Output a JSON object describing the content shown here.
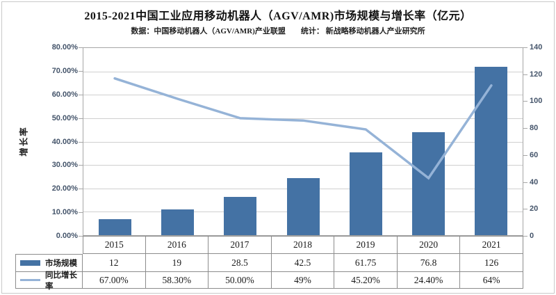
{
  "figure": {
    "title": "2015-2021中国工业应用移动机器人（AGV/AMR)市场规模与增长率（亿元）",
    "subtitle": "数据：中国移动机器人（AGV/AMR)产业联盟　　统计： 新战略移动机器人产业研究所"
  },
  "colors": {
    "bar": "#4472a4",
    "line": "#95b3d7",
    "gridline": "#cfcfcf",
    "axis_text": "#44546a",
    "table_border": "#8c8c8c"
  },
  "chart_data": {
    "type": "bar+line combo",
    "categories": [
      "2015",
      "2016",
      "2017",
      "2018",
      "2019",
      "2020",
      "2021"
    ],
    "series": [
      {
        "name": "市场规模",
        "type": "bar",
        "axis": "right",
        "color": "#4472a4",
        "values": [
          12,
          19,
          28.5,
          42.5,
          61.75,
          76.8,
          126
        ],
        "display": [
          "12",
          "19",
          "28.5",
          "42.5",
          "61.75",
          "76.8",
          "126"
        ]
      },
      {
        "name": "同比增长率",
        "type": "line",
        "axis": "left",
        "color": "#95b3d7",
        "values_pct": [
          67,
          58.3,
          50,
          49,
          45.2,
          24.4,
          64
        ],
        "display": [
          "67.00%",
          "58.30%",
          "50.00%",
          "49%",
          "45.20%",
          "24.40%",
          "64%"
        ]
      }
    ],
    "left_axis": {
      "label": "增长率",
      "min": 0,
      "max": 80,
      "ticks": [
        "80.00%",
        "70.00%",
        "60.00%",
        "50.00%",
        "40.00%",
        "30.00%",
        "20.00%",
        "10.00%",
        "0.00%"
      ]
    },
    "right_axis": {
      "min": 0,
      "max": 140,
      "ticks": [
        "140",
        "120",
        "100",
        "80",
        "60",
        "40",
        "20",
        "0"
      ]
    },
    "grid": "horizontal",
    "legend_position": "table-left"
  }
}
